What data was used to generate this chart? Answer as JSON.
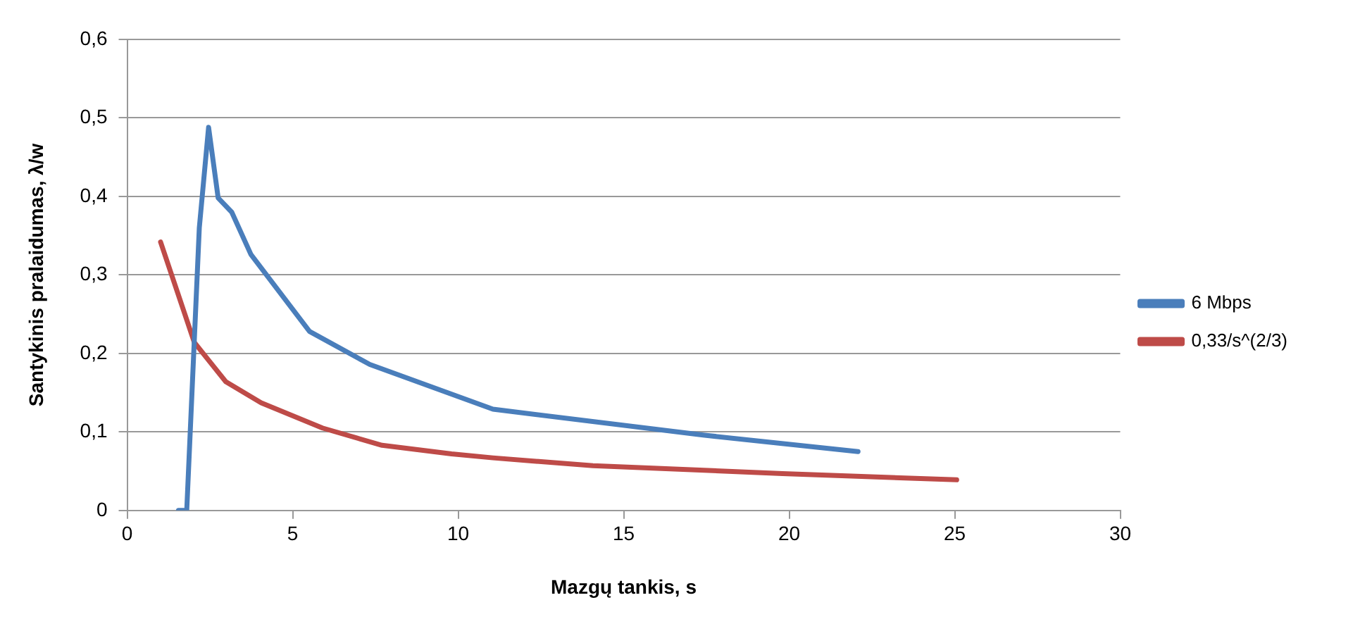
{
  "chart_data": {
    "type": "line",
    "xlabel": "Mazgų tankis, s",
    "ylabel": "Santykinis pralaidumas, λ/w",
    "xlim": [
      0,
      30
    ],
    "xticks": [
      0,
      5,
      10,
      15,
      20,
      25,
      30
    ],
    "ylim": [
      0,
      0.6
    ],
    "yticks": [
      {
        "value": 0,
        "label": "0"
      },
      {
        "value": 0.1,
        "label": "0,1"
      },
      {
        "value": 0.2,
        "label": "0,2"
      },
      {
        "value": 0.3,
        "label": "0,3"
      },
      {
        "value": 0.4,
        "label": "0,4"
      },
      {
        "value": 0.5,
        "label": "0,5"
      },
      {
        "value": 0.6,
        "label": "0,6"
      }
    ],
    "grid": "y",
    "legend": "right",
    "marker": "none",
    "series": [
      {
        "name": "6 Mbps",
        "color": "#4a7ebb",
        "x": [
          1.55,
          1.8,
          2.18,
          2.46,
          2.75,
          3.16,
          3.74,
          5.51,
          7.33,
          11.05,
          17.4,
          22.08
        ],
        "values": [
          0,
          0,
          0.36,
          0.488,
          0.398,
          0.38,
          0.326,
          0.228,
          0.186,
          0.129,
          0.096,
          0.075
        ]
      },
      {
        "name": "0,33/s^(2/3)",
        "color": "#be4b48",
        "x": [
          1.01,
          2.03,
          2.98,
          4.05,
          5.9,
          7.7,
          9.8,
          11.05,
          14.07,
          19.8,
          25.06
        ],
        "values": [
          0.342,
          0.214,
          0.164,
          0.137,
          0.105,
          0.083,
          0.072,
          0.067,
          0.057,
          0.047,
          0.039
        ]
      }
    ]
  }
}
